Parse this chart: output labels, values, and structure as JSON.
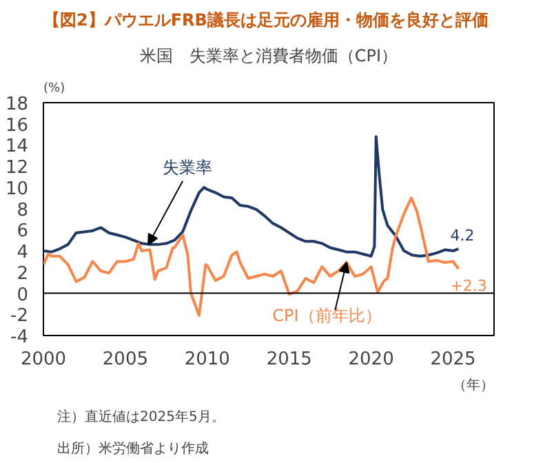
{
  "chart_data": {
    "type": "line",
    "title": "【図2】パウエルFRB議長は足元の雇用・物価を良好と評価",
    "subtitle": "米国　失業率と消費者物価（CPI）",
    "ylabel": "(%)",
    "xlabel": "（年）",
    "xlim": [
      2000,
      2027.5
    ],
    "xticks": [
      2000,
      2005,
      2010,
      2015,
      2020,
      2025
    ],
    "ylim": [
      -4,
      18
    ],
    "yticks": [
      -4,
      -2,
      0,
      2,
      4,
      6,
      8,
      10,
      12,
      14,
      16,
      18
    ],
    "grid": false,
    "line_style": "solid",
    "marker": "none",
    "ref_lines": [
      {
        "axis": "y",
        "value": 0,
        "color": "#000000"
      }
    ],
    "series": [
      {
        "name": "失業率",
        "color": "#1f3864",
        "x": [
          2000,
          2000.5,
          2001,
          2001.5,
          2002,
          2002.5,
          2003,
          2003.5,
          2004,
          2004.5,
          2005,
          2005.5,
          2006,
          2006.5,
          2007,
          2007.5,
          2008,
          2008.5,
          2009,
          2009.5,
          2009.8,
          2010,
          2010.5,
          2011,
          2011.5,
          2012,
          2012.5,
          2013,
          2013.5,
          2014,
          2014.5,
          2015,
          2015.5,
          2016,
          2016.5,
          2017,
          2017.5,
          2018,
          2018.5,
          2019,
          2019.5,
          2020,
          2020.2,
          2020.3,
          2020.5,
          2020.7,
          2021,
          2021.5,
          2022,
          2022.5,
          2023,
          2023.5,
          2024,
          2024.5,
          2025,
          2025.33
        ],
        "values": [
          4.0,
          3.9,
          4.2,
          4.6,
          5.7,
          5.8,
          5.9,
          6.2,
          5.7,
          5.5,
          5.3,
          5.0,
          4.7,
          4.6,
          4.6,
          4.7,
          5.0,
          5.8,
          7.8,
          9.5,
          10.0,
          9.8,
          9.5,
          9.1,
          9.0,
          8.3,
          8.2,
          7.9,
          7.3,
          6.6,
          6.2,
          5.7,
          5.2,
          4.9,
          4.9,
          4.7,
          4.3,
          4.1,
          3.9,
          3.9,
          3.7,
          3.5,
          4.4,
          14.8,
          11.1,
          7.9,
          6.4,
          5.4,
          4.0,
          3.6,
          3.5,
          3.6,
          3.8,
          4.1,
          4.0,
          4.2
        ]
      },
      {
        "name": "CPI（前年比）",
        "color": "#f4874b",
        "x": [
          2000,
          2000.3,
          2000.5,
          2001,
          2001.5,
          2002,
          2002.5,
          2003,
          2003.5,
          2004,
          2004.5,
          2005,
          2005.5,
          2005.8,
          2006,
          2006.5,
          2006.8,
          2007,
          2007.5,
          2007.9,
          2008,
          2008.5,
          2008.8,
          2009,
          2009.5,
          2009.9,
          2010,
          2010.5,
          2011,
          2011.5,
          2011.8,
          2012,
          2012.5,
          2013,
          2013.5,
          2014,
          2014.5,
          2015,
          2015.5,
          2016,
          2016.5,
          2017,
          2017.5,
          2018,
          2018.5,
          2019,
          2019.5,
          2020,
          2020.4,
          2020.8,
          2021,
          2021.3,
          2021.5,
          2022,
          2022.45,
          2022.8,
          2023,
          2023.5,
          2024,
          2024.5,
          2025,
          2025.33
        ],
        "values": [
          2.7,
          3.7,
          3.5,
          3.5,
          2.7,
          1.1,
          1.5,
          3.0,
          2.1,
          1.9,
          3.0,
          3.0,
          3.2,
          4.7,
          4.0,
          4.1,
          1.3,
          2.1,
          2.4,
          4.3,
          4.3,
          5.5,
          3.7,
          0.0,
          -2.1,
          2.7,
          2.6,
          1.2,
          1.6,
          3.6,
          3.9,
          2.9,
          1.4,
          1.6,
          1.8,
          1.6,
          2.1,
          -0.1,
          0.2,
          1.4,
          1.0,
          2.5,
          1.6,
          2.1,
          2.9,
          1.6,
          1.8,
          2.5,
          0.1,
          1.2,
          1.4,
          4.2,
          5.4,
          7.5,
          9.0,
          7.7,
          6.4,
          3.0,
          3.1,
          2.9,
          3.0,
          2.3
        ]
      }
    ],
    "annotations": [
      {
        "text": "4.2",
        "x": 2025.33,
        "y": 4.2
      },
      {
        "text": "+2.3",
        "x": 2025.33,
        "y": 2.3
      },
      "注）直近値は2025年5月。",
      "出所）米労働省より作成"
    ]
  }
}
